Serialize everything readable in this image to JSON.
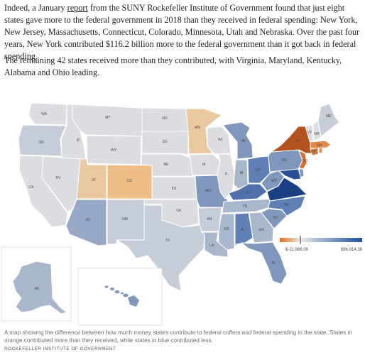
{
  "article": {
    "p1_before": "Indeed, a January ",
    "p1_link": "report",
    "p1_after": " from the SUNY Rockefeller Institute of Government found that just eight states gave more to the federal government in 2018 than they received in federal spending: New York, New Jersey, Massachusetts, Connecticut, Colorado, Minnesota, Utah and Nebraska. Over the past four years, New York contributed $116.2 billion more to the federal government than it got back in federal spending.",
    "p2": "The remaining 42 states received more than they contributed, with Virginia, Maryland, Kentucky, Alabama and Ohio leading."
  },
  "map": {
    "legend": {
      "min_label": "$-21,986.00",
      "max_label": "$96,914.38",
      "low_color": "#e8711f",
      "mid_color": "#e8e8e8",
      "high_color": "#1c4f99"
    },
    "state_labels": {
      "WA": "WA",
      "OR": "OR",
      "CA": "CA",
      "ID": "ID",
      "NV": "NV",
      "MT": "MT",
      "WY": "WY",
      "UT": "UT",
      "AZ": "AZ",
      "CO": "CO",
      "NM": "NM",
      "ND": "ND",
      "SD": "SD",
      "NE": "NE",
      "KS": "KS",
      "OK": "OK",
      "TX": "TX",
      "MN": "MN",
      "IA": "IA",
      "MO": "MO",
      "AR": "AR",
      "LA": "LA",
      "WI": "WI",
      "IL": "IL",
      "MI": "MI",
      "IN": "IN",
      "OH": "OH",
      "KY": "KY",
      "TN": "TN",
      "MS": "MS",
      "AL": "AL",
      "GA": "GA",
      "FL": "FL",
      "SC": "SC",
      "NC": "NC",
      "VA": "VA",
      "WV": "WV",
      "PA": "PA",
      "NY": "NY",
      "VT": "VT",
      "NH": "NH",
      "ME": "ME",
      "MA": "MA",
      "CT": "CT",
      "NJ": "NJ",
      "AK": "AK"
    },
    "colors": {
      "orange_dark": "#b4521f",
      "orange": "#d9722e",
      "tan": "#eac8a0",
      "gray_light": "#dcdde0",
      "gray_blue": "#c7cdd8",
      "blue_light": "#a9b7cc",
      "blue_mid": "#7f96bd",
      "blue": "#5e80b4",
      "blue_dark": "#274f94",
      "blue_darkest": "#1a3f84"
    }
  },
  "caption": "A map showing the difference between how much money states contribute to federal coffers and federal spending in the state. States in orange contributed more than they received, while states in blue contributed less.",
  "credit": "ROCKEFELLER INSTITUTE OF GOVERNMENT"
}
